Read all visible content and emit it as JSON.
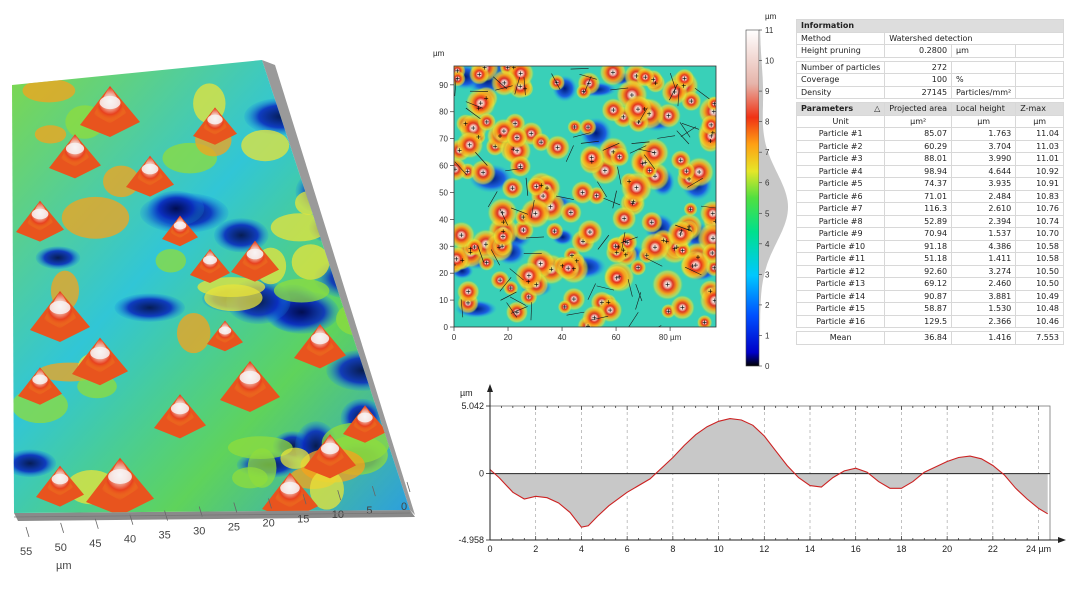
{
  "surface3d": {
    "x_ticks": [
      "55",
      "50",
      "45",
      "40",
      "35",
      "30",
      "25",
      "20",
      "15",
      "10",
      "5",
      "0"
    ],
    "x_unit": "µm"
  },
  "map2d": {
    "y_unit": "µm",
    "y_ticks": [
      "90",
      "80",
      "70",
      "60",
      "50",
      "40",
      "30",
      "20",
      "10",
      "0"
    ],
    "x_ticks": [
      "0",
      "20",
      "40",
      "60",
      "80 µm"
    ]
  },
  "colorbar": {
    "unit": "µm",
    "ticks": [
      "11",
      "10",
      "9",
      "8",
      "7",
      "6",
      "5",
      "4",
      "3",
      "2",
      "1",
      "0"
    ]
  },
  "table": {
    "information": {
      "title": "Information",
      "rows": [
        {
          "label": "Method",
          "value": "Watershed detection",
          "unit": ""
        },
        {
          "label": "Height pruning",
          "value": "0.2800",
          "unit": "µm"
        }
      ]
    },
    "summary": [
      {
        "label": "Number of particles",
        "value": "272",
        "unit": ""
      },
      {
        "label": "Coverage",
        "value": "100",
        "unit": "%"
      },
      {
        "label": "Density",
        "value": "27145",
        "unit": "Particles/mm²"
      }
    ],
    "params_header": {
      "title": "Parameters",
      "sort_icon": "△",
      "col1": "Projected area",
      "col2": "Local height",
      "col3": "Z-max"
    },
    "units_row": {
      "label": "Unit",
      "col1": "µm²",
      "col2": "µm",
      "col3": "µm"
    },
    "particles": [
      {
        "name": "Particle #1",
        "area": "85.07",
        "height": "1.763",
        "zmax": "11.04"
      },
      {
        "name": "Particle #2",
        "area": "60.29",
        "height": "3.704",
        "zmax": "11.03"
      },
      {
        "name": "Particle #3",
        "area": "88.01",
        "height": "3.990",
        "zmax": "11.01"
      },
      {
        "name": "Particle #4",
        "area": "98.94",
        "height": "4.644",
        "zmax": "10.92"
      },
      {
        "name": "Particle #5",
        "area": "74.37",
        "height": "3.935",
        "zmax": "10.91"
      },
      {
        "name": "Particle #6",
        "area": "71.01",
        "height": "2.484",
        "zmax": "10.83"
      },
      {
        "name": "Particle #7",
        "area": "116.3",
        "height": "2.610",
        "zmax": "10.76"
      },
      {
        "name": "Particle #8",
        "area": "52.89",
        "height": "2.394",
        "zmax": "10.74"
      },
      {
        "name": "Particle #9",
        "area": "70.94",
        "height": "1.537",
        "zmax": "10.70"
      },
      {
        "name": "Particle #10",
        "area": "91.18",
        "height": "4.386",
        "zmax": "10.58"
      },
      {
        "name": "Particle #11",
        "area": "51.18",
        "height": "1.411",
        "zmax": "10.58"
      },
      {
        "name": "Particle #12",
        "area": "92.60",
        "height": "3.274",
        "zmax": "10.50"
      },
      {
        "name": "Particle #13",
        "area": "69.12",
        "height": "2.460",
        "zmax": "10.50"
      },
      {
        "name": "Particle #14",
        "area": "90.87",
        "height": "3.881",
        "zmax": "10.49"
      },
      {
        "name": "Particle #15",
        "area": "58.87",
        "height": "1.530",
        "zmax": "10.48"
      },
      {
        "name": "Particle #16",
        "area": "129.5",
        "height": "2.366",
        "zmax": "10.46"
      }
    ],
    "mean": {
      "label": "Mean",
      "area": "36.84",
      "height": "1.416",
      "zmax": "7.553"
    }
  },
  "chart_data": {
    "type": "area",
    "ylabel": "µm",
    "xlabel": "µm",
    "yticks": [
      "5.042",
      "0",
      "-4.958"
    ],
    "ylim": [
      -4.958,
      5.042
    ],
    "xlim": [
      0,
      24.5
    ],
    "xticks": [
      0,
      2,
      4,
      6,
      8,
      10,
      12,
      14,
      16,
      18,
      20,
      22,
      24
    ],
    "xtick_labels": [
      "0",
      "2",
      "4",
      "6",
      "8",
      "10",
      "12",
      "14",
      "16",
      "18",
      "20",
      "22",
      "24 µm"
    ],
    "baseline": 0,
    "grid": "vertical dashed",
    "x": [
      0,
      0.4,
      1,
      1.5,
      2,
      2.5,
      3,
      3.5,
      4,
      4.3,
      4.7,
      5.2,
      6,
      7,
      8,
      8.5,
      9,
      9.5,
      10,
      10.5,
      11,
      11.5,
      12,
      12.5,
      13,
      13.5,
      14,
      14.5,
      15,
      15.5,
      16,
      16.5,
      17,
      17.5,
      18,
      18.5,
      19,
      19.5,
      20,
      20.5,
      21,
      21.5,
      22,
      22.5,
      23,
      23.5,
      24,
      24.4
    ],
    "y": [
      0.3,
      -0.3,
      -1.4,
      -1.9,
      -1.7,
      -1.8,
      -2.2,
      -2.9,
      -4.0,
      -3.9,
      -3.2,
      -2.4,
      -1.4,
      -0.4,
      1.2,
      2.1,
      2.9,
      3.5,
      3.9,
      4.1,
      4.0,
      3.6,
      2.8,
      1.7,
      0.6,
      -0.3,
      -0.9,
      -1.0,
      -0.3,
      0.2,
      0.4,
      0.1,
      -0.6,
      -1.1,
      -1.1,
      -0.6,
      0.1,
      0.5,
      0.9,
      1.2,
      1.3,
      1.1,
      0.6,
      -0.1,
      -1.1,
      -1.9,
      -2.6,
      -3.0
    ],
    "line_color": "#cc2222",
    "fill_color": "#c8c8c8"
  }
}
